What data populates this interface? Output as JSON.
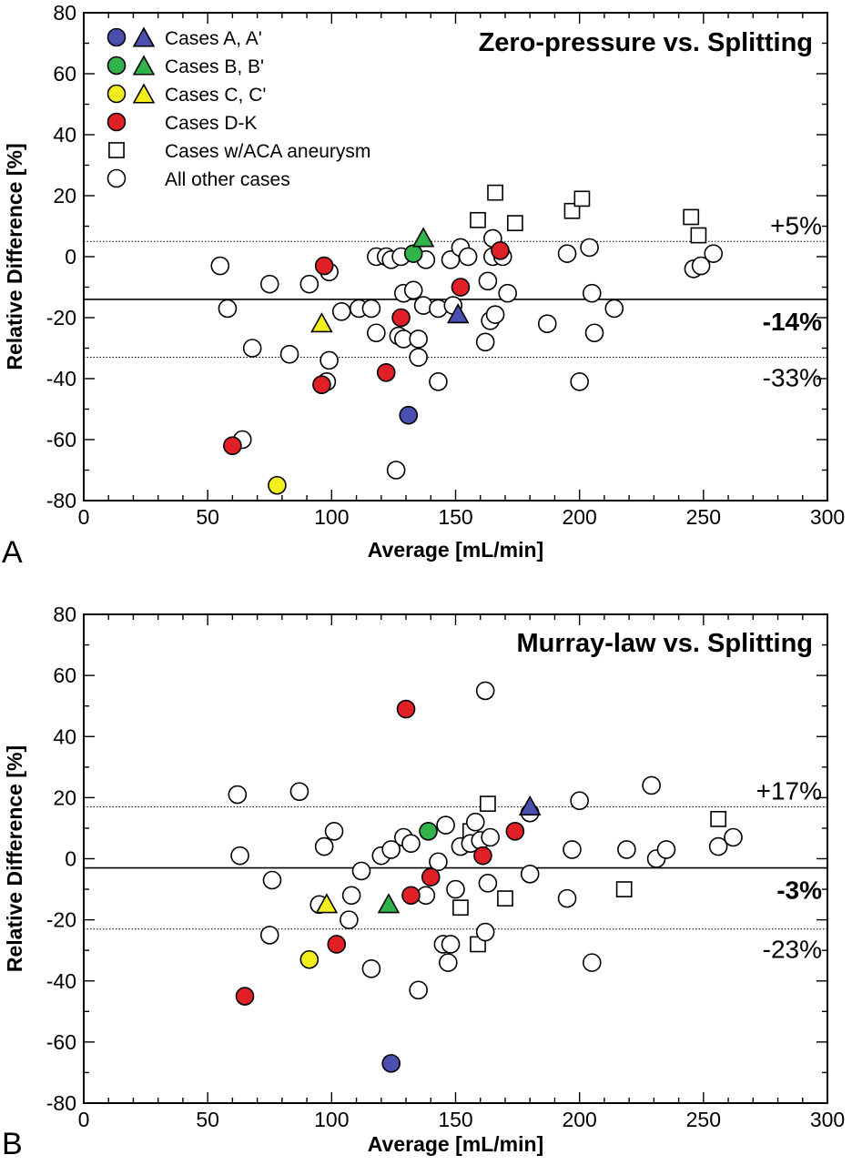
{
  "chart_data": [
    {
      "type": "scatter",
      "panel": "A",
      "title": "Zero-pressure vs. Splitting",
      "xlabel": "Average [mL/min]",
      "ylabel": "Relative Difference [%]",
      "xlim": [
        0,
        300
      ],
      "ylim": [
        -80,
        80
      ],
      "xticks": [
        "0",
        "50",
        "100",
        "150",
        "200",
        "250",
        "300"
      ],
      "yticks": [
        "-80",
        "-60",
        "-40",
        "-20",
        "0",
        "20",
        "40",
        "60",
        "80"
      ],
      "grid": false,
      "legend_position": "top-left",
      "legend": [
        {
          "label": "Cases A, A'",
          "marker": "circle+triangle",
          "color": "#4b4fb0"
        },
        {
          "label": "Cases B, B'",
          "marker": "circle+triangle",
          "color": "#2fb34a"
        },
        {
          "label": "Cases C, C'",
          "marker": "circle+triangle",
          "color": "#f5ee1e"
        },
        {
          "label": "Cases D-K",
          "marker": "circle",
          "color": "#e01f26"
        },
        {
          "label": "Cases w/ACA aneurysm",
          "marker": "square",
          "color": "#ffffff"
        },
        {
          "label": "All other cases",
          "marker": "circle",
          "color": "#ffffff"
        }
      ],
      "reference_lines": [
        {
          "y": 5,
          "label": "+5%",
          "style": "dotted"
        },
        {
          "y": -14,
          "label": "-14%",
          "style": "solid"
        },
        {
          "y": -33,
          "label": "-33%",
          "style": "dotted"
        }
      ],
      "series": [
        {
          "group": "Cases A, A'",
          "marker": "circle",
          "color": "#4b4fb0",
          "points": [
            [
              131,
              -52
            ]
          ]
        },
        {
          "group": "Cases A, A'",
          "marker": "triangle",
          "color": "#4b4fb0",
          "points": [
            [
              151,
              -19
            ]
          ]
        },
        {
          "group": "Cases B, B'",
          "marker": "circle",
          "color": "#2fb34a",
          "points": [
            [
              133,
              1
            ]
          ]
        },
        {
          "group": "Cases B, B'",
          "marker": "triangle",
          "color": "#2fb34a",
          "points": [
            [
              137,
              6
            ]
          ]
        },
        {
          "group": "Cases C, C'",
          "marker": "circle",
          "color": "#f5ee1e",
          "points": [
            [
              78,
              -75
            ]
          ]
        },
        {
          "group": "Cases C, C'",
          "marker": "triangle",
          "color": "#f5ee1e",
          "points": [
            [
              96,
              -22
            ]
          ]
        },
        {
          "group": "Cases D-K",
          "marker": "circle",
          "color": "#e01f26",
          "points": [
            [
              60,
              -62
            ],
            [
              96,
              -42
            ],
            [
              97,
              -3
            ],
            [
              122,
              -38
            ],
            [
              128,
              -20
            ],
            [
              152,
              -10
            ],
            [
              168,
              2
            ]
          ]
        },
        {
          "group": "Cases w/ACA aneurysm",
          "marker": "square",
          "color": "#ffffff",
          "points": [
            [
              159,
              12
            ],
            [
              166,
              21
            ],
            [
              174,
              11
            ],
            [
              197,
              15
            ],
            [
              201,
              19
            ],
            [
              245,
              13
            ],
            [
              248,
              7
            ]
          ]
        },
        {
          "group": "All other cases",
          "marker": "circle",
          "color": "#ffffff",
          "points": [
            [
              55,
              -3
            ],
            [
              58,
              -17
            ],
            [
              64,
              -60
            ],
            [
              68,
              -30
            ],
            [
              75,
              -9
            ],
            [
              83,
              -32
            ],
            [
              91,
              -9
            ],
            [
              98,
              -41
            ],
            [
              99,
              -5
            ],
            [
              99,
              -34
            ],
            [
              104,
              -18
            ],
            [
              111,
              -17
            ],
            [
              116,
              -17
            ],
            [
              118,
              0
            ],
            [
              118,
              -25
            ],
            [
              122,
              0
            ],
            [
              124,
              -1
            ],
            [
              126,
              -70
            ],
            [
              127,
              -26
            ],
            [
              128,
              0
            ],
            [
              129,
              -27
            ],
            [
              129,
              -12
            ],
            [
              133,
              -11
            ],
            [
              135,
              -33
            ],
            [
              135,
              -27
            ],
            [
              137,
              -16
            ],
            [
              138,
              -1
            ],
            [
              143,
              -17
            ],
            [
              143,
              -41
            ],
            [
              148,
              -1
            ],
            [
              149,
              -16
            ],
            [
              152,
              3
            ],
            [
              155,
              0
            ],
            [
              162,
              -28
            ],
            [
              163,
              -8
            ],
            [
              164,
              -21
            ],
            [
              165,
              6
            ],
            [
              165,
              0
            ],
            [
              166,
              -19
            ],
            [
              169,
              0
            ],
            [
              171,
              -12
            ],
            [
              187,
              -22
            ],
            [
              195,
              1
            ],
            [
              200,
              -41
            ],
            [
              204,
              3
            ],
            [
              205,
              -12
            ],
            [
              206,
              -25
            ],
            [
              214,
              -17
            ],
            [
              246,
              -4
            ],
            [
              249,
              -3
            ],
            [
              254,
              1
            ]
          ]
        }
      ]
    },
    {
      "type": "scatter",
      "panel": "B",
      "title": "Murray-law vs. Splitting",
      "xlabel": "Average [mL/min]",
      "ylabel": "Relative Difference [%]",
      "xlim": [
        0,
        300
      ],
      "ylim": [
        -80,
        80
      ],
      "xticks": [
        "0",
        "50",
        "100",
        "150",
        "200",
        "250",
        "300"
      ],
      "yticks": [
        "-80",
        "-60",
        "-40",
        "-20",
        "0",
        "20",
        "40",
        "60",
        "80"
      ],
      "grid": false,
      "reference_lines": [
        {
          "y": 17,
          "label": "+17%",
          "style": "dotted"
        },
        {
          "y": -3,
          "label": "-3%",
          "style": "solid"
        },
        {
          "y": -23,
          "label": "-23%",
          "style": "dotted"
        }
      ],
      "series": [
        {
          "group": "Cases A, A'",
          "marker": "circle",
          "color": "#4b4fb0",
          "points": [
            [
              124,
              -67
            ]
          ]
        },
        {
          "group": "Cases A, A'",
          "marker": "triangle",
          "color": "#4b4fb0",
          "points": [
            [
              180,
              17
            ]
          ]
        },
        {
          "group": "Cases B, B'",
          "marker": "circle",
          "color": "#2fb34a",
          "points": [
            [
              139,
              9
            ]
          ]
        },
        {
          "group": "Cases B, B'",
          "marker": "triangle",
          "color": "#2fb34a",
          "points": [
            [
              123,
              -15
            ]
          ]
        },
        {
          "group": "Cases C, C'",
          "marker": "circle",
          "color": "#f5ee1e",
          "points": [
            [
              91,
              -33
            ]
          ]
        },
        {
          "group": "Cases C, C'",
          "marker": "triangle",
          "color": "#f5ee1e",
          "points": [
            [
              98,
              -15
            ]
          ]
        },
        {
          "group": "Cases D-K",
          "marker": "circle",
          "color": "#e01f26",
          "points": [
            [
              65,
              -45
            ],
            [
              102,
              -28
            ],
            [
              130,
              49
            ],
            [
              132,
              -12
            ],
            [
              140,
              -6
            ],
            [
              161,
              1
            ],
            [
              174,
              9
            ]
          ]
        },
        {
          "group": "Cases w/ACA aneurysm",
          "marker": "square",
          "color": "#ffffff",
          "points": [
            [
              152,
              -16
            ],
            [
              156,
              9
            ],
            [
              159,
              -28
            ],
            [
              163,
              18
            ],
            [
              170,
              -13
            ],
            [
              218,
              -10
            ],
            [
              256,
              13
            ]
          ]
        },
        {
          "group": "All other cases",
          "marker": "circle",
          "color": "#ffffff",
          "points": [
            [
              62,
              21
            ],
            [
              63,
              1
            ],
            [
              75,
              -25
            ],
            [
              76,
              -7
            ],
            [
              87,
              22
            ],
            [
              95,
              -15
            ],
            [
              97,
              4
            ],
            [
              101,
              9
            ],
            [
              107,
              -20
            ],
            [
              108,
              -12
            ],
            [
              112,
              -4
            ],
            [
              116,
              -36
            ],
            [
              120,
              1
            ],
            [
              124,
              3
            ],
            [
              129,
              7
            ],
            [
              132,
              5
            ],
            [
              135,
              -43
            ],
            [
              138,
              -12
            ],
            [
              143,
              -1
            ],
            [
              145,
              -28
            ],
            [
              146,
              11
            ],
            [
              147,
              -34
            ],
            [
              148,
              -28
            ],
            [
              150,
              -10
            ],
            [
              152,
              4
            ],
            [
              156,
              5
            ],
            [
              158,
              12
            ],
            [
              160,
              6
            ],
            [
              162,
              -24
            ],
            [
              162,
              55
            ],
            [
              163,
              -8
            ],
            [
              164,
              7
            ],
            [
              180,
              15
            ],
            [
              180,
              -5
            ],
            [
              195,
              -13
            ],
            [
              197,
              3
            ],
            [
              200,
              19
            ],
            [
              205,
              -34
            ],
            [
              219,
              3
            ],
            [
              229,
              24
            ],
            [
              231,
              0
            ],
            [
              235,
              3
            ],
            [
              256,
              4
            ],
            [
              262,
              7
            ]
          ]
        }
      ]
    }
  ],
  "panel_labels": [
    "A",
    "B"
  ]
}
